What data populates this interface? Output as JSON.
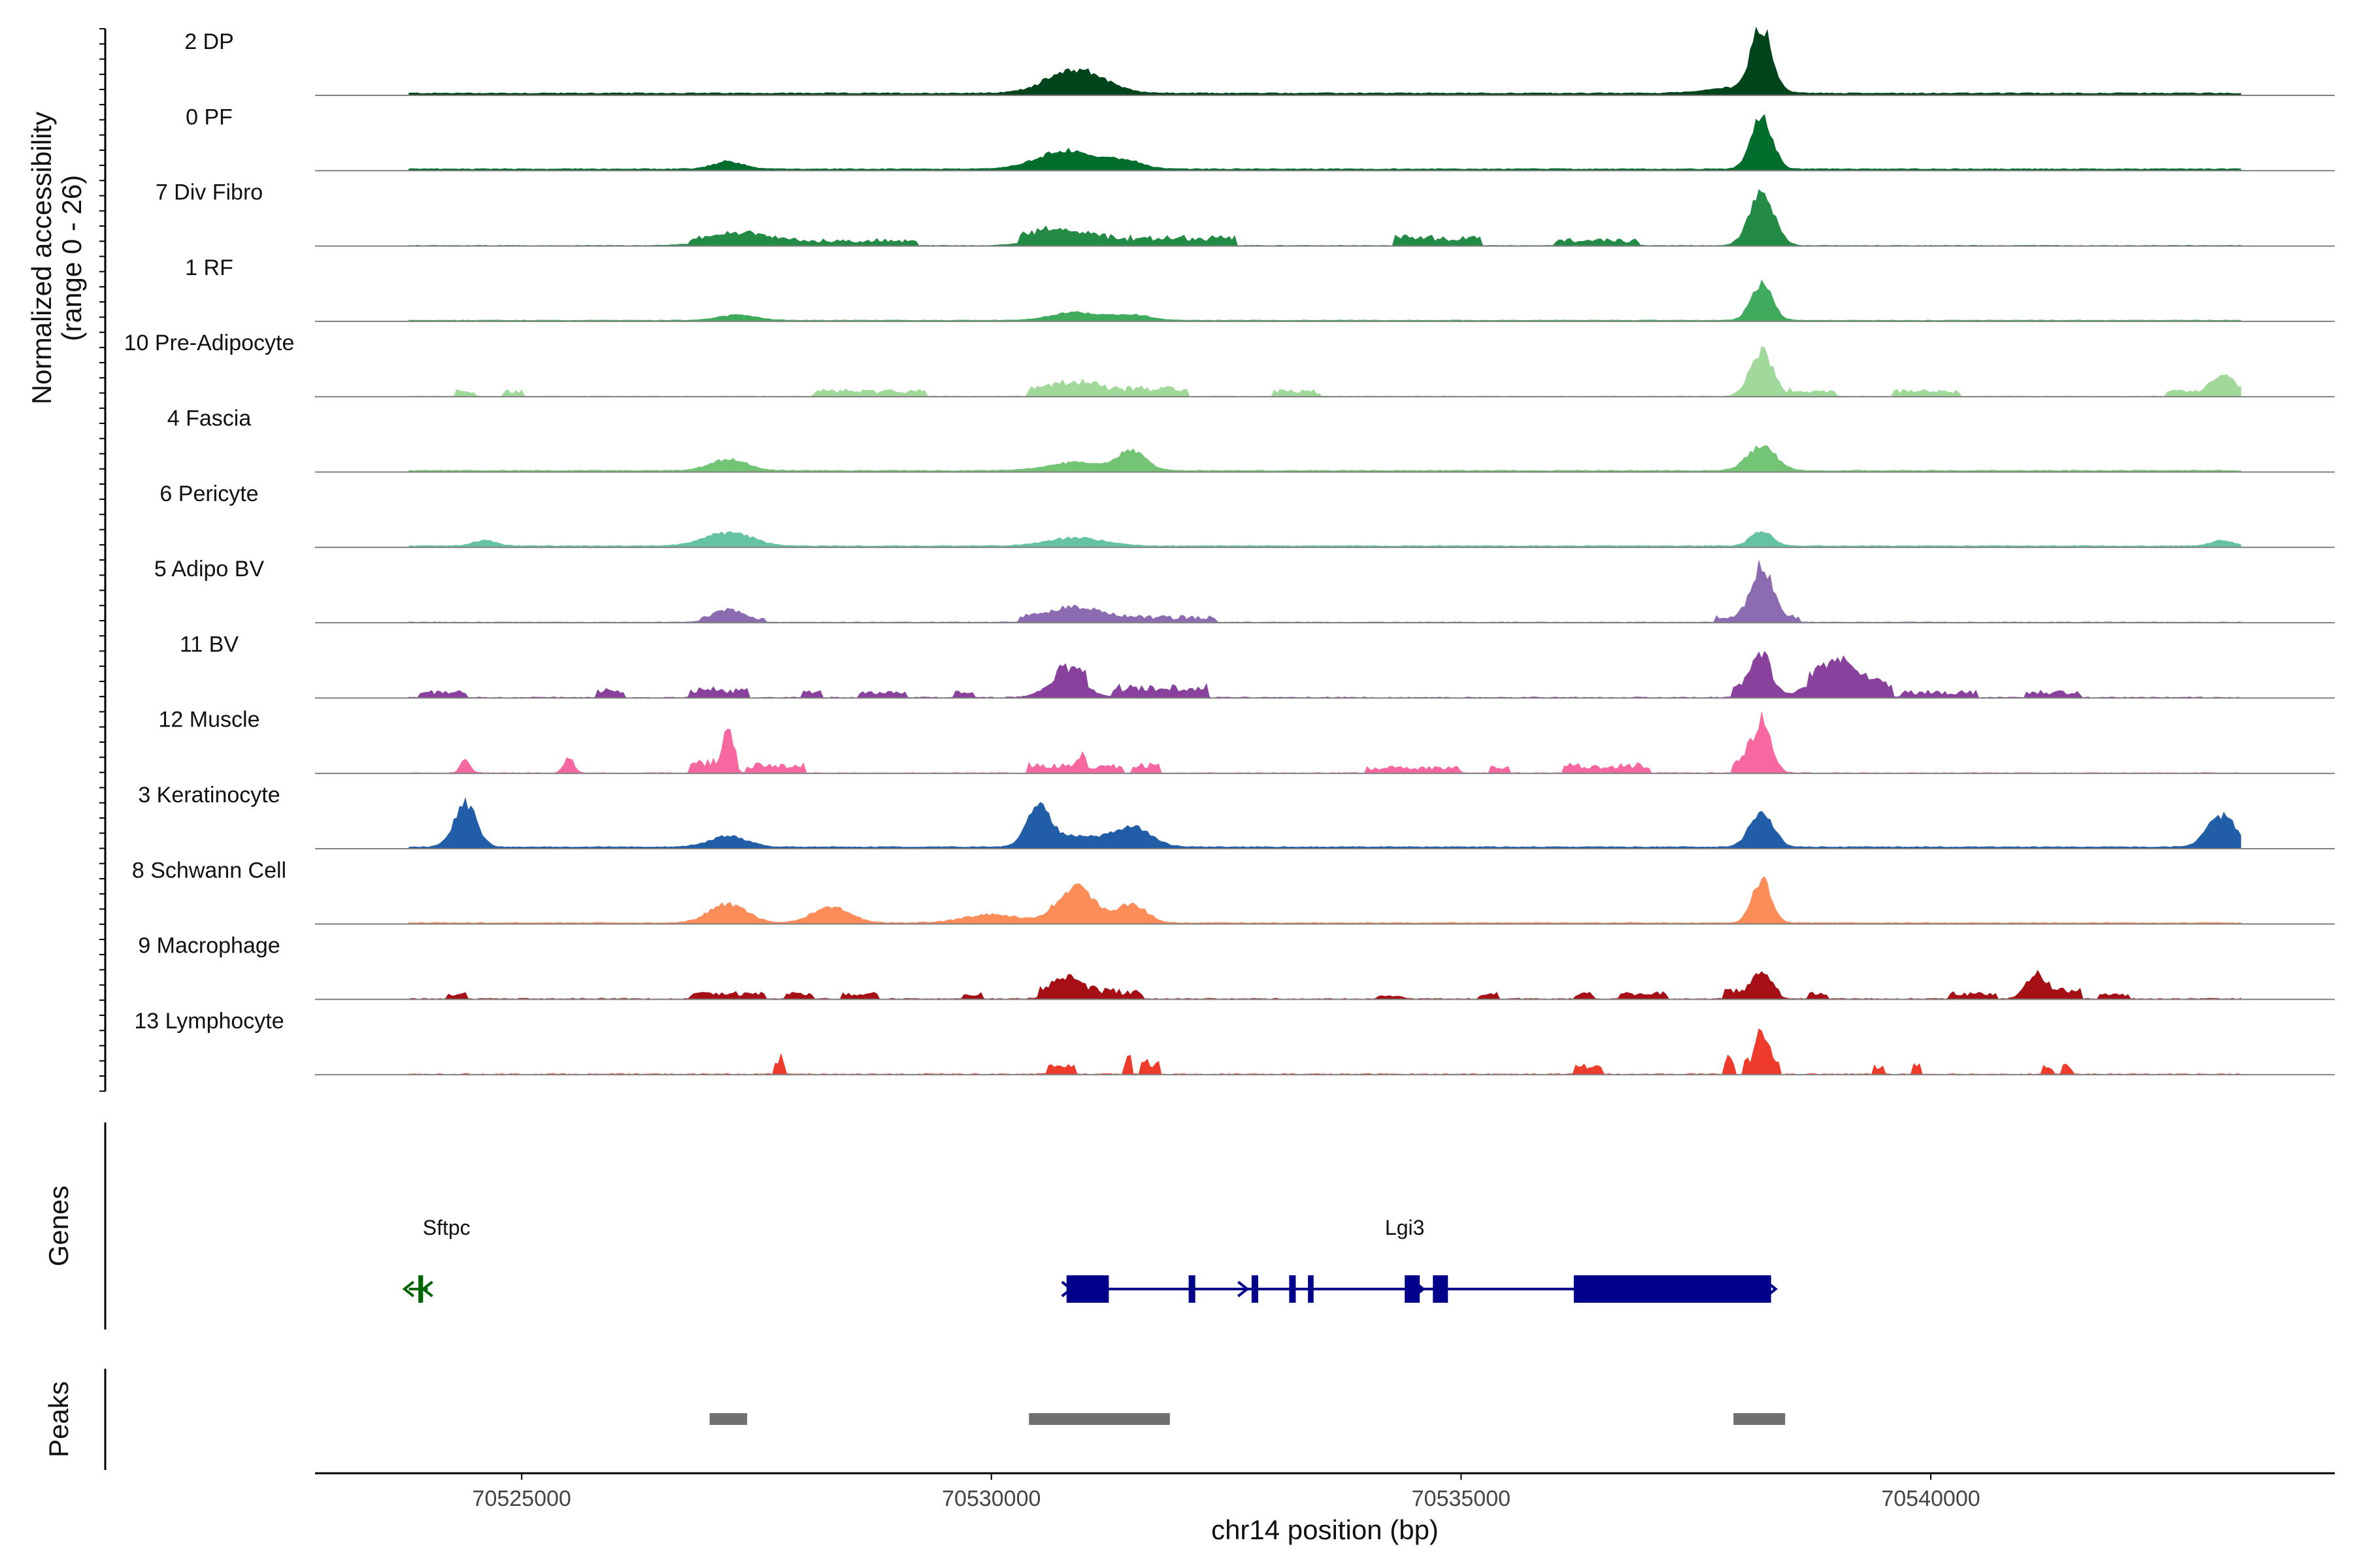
{
  "chart_data": {
    "type": "area",
    "title": "",
    "ylabel_line1": "Normalized accessibility",
    "ylabel_line2": "(range 0 - 26)",
    "ylim": [
      0,
      26
    ],
    "xlabel": "chr14 position (bp)",
    "xlim": [
      70522800,
      70544300
    ],
    "x_ticks": [
      70525000,
      70530000,
      70535000,
      70540000
    ],
    "x_tick_labels": [
      "70525000",
      "70530000",
      "70535000",
      "70540000"
    ],
    "signal_range": [
      70523800,
      70543300
    ],
    "tracks": [
      {
        "name": "2 DP",
        "color": "#00441b",
        "baseline": 0.6,
        "noise": 0.4,
        "peaks": [
          [
            70530900,
            300,
            9
          ],
          [
            70538200,
            110,
            24
          ],
          [
            70537900,
            300,
            2
          ]
        ],
        "blocks": []
      },
      {
        "name": "0 PF",
        "color": "#006d2c",
        "baseline": 0.5,
        "noise": 0.3,
        "peaks": [
          [
            70530800,
            300,
            7
          ],
          [
            70538200,
            110,
            20
          ],
          [
            70527200,
            150,
            3
          ],
          [
            70531400,
            200,
            3
          ]
        ],
        "blocks": []
      },
      {
        "name": "7 Div Fibro",
        "color": "#238b45",
        "baseline": 0.1,
        "noise": 0.2,
        "peaks": [
          [
            70538200,
            130,
            19
          ],
          [
            70530700,
            250,
            4
          ],
          [
            70527300,
            300,
            3
          ]
        ],
        "blocks": [
          [
            70526800,
            70529200,
            2
          ],
          [
            70530300,
            70532600,
            3
          ],
          [
            70534300,
            70535200,
            3
          ],
          [
            70536000,
            70536900,
            2
          ]
        ]
      },
      {
        "name": "1 RF",
        "color": "#41ab5d",
        "baseline": 0.3,
        "noise": 0.2,
        "peaks": [
          [
            70538200,
            110,
            14
          ],
          [
            70530900,
            250,
            3
          ],
          [
            70527300,
            200,
            2
          ],
          [
            70531500,
            200,
            2
          ]
        ],
        "blocks": []
      },
      {
        "name": "10 Pre-Adipocyte",
        "color": "#a1d99b",
        "baseline": 0,
        "noise": 0.3,
        "peaks": [
          [
            70538200,
            120,
            17
          ],
          [
            70543100,
            120,
            6
          ],
          [
            70530900,
            200,
            3
          ]
        ],
        "blocks": [
          [
            70524300,
            70524500,
            2
          ],
          [
            70524800,
            70525000,
            2
          ],
          [
            70528100,
            70529300,
            2
          ],
          [
            70530400,
            70532100,
            3
          ],
          [
            70533000,
            70533500,
            2
          ],
          [
            70538500,
            70539000,
            2
          ],
          [
            70539600,
            70540300,
            2
          ],
          [
            70542500,
            70543300,
            2
          ]
        ]
      },
      {
        "name": "4 Fascia",
        "color": "#74c476",
        "baseline": 0.4,
        "noise": 0.3,
        "peaks": [
          [
            70538200,
            150,
            9
          ],
          [
            70531500,
            150,
            7
          ],
          [
            70527200,
            200,
            4
          ],
          [
            70530900,
            300,
            3
          ]
        ],
        "blocks": []
      },
      {
        "name": "6 Pericyte",
        "color": "#66c2a4",
        "baseline": 0.4,
        "noise": 0.3,
        "peaks": [
          [
            70538200,
            110,
            6
          ],
          [
            70527200,
            250,
            5
          ],
          [
            70530900,
            300,
            3
          ],
          [
            70524600,
            120,
            2
          ],
          [
            70543100,
            120,
            2
          ]
        ],
        "blocks": []
      },
      {
        "name": "5 Adipo BV",
        "color": "#8c6bb1",
        "baseline": 0.1,
        "noise": 0.2,
        "peaks": [
          [
            70538200,
            110,
            19
          ],
          [
            70530900,
            250,
            4
          ],
          [
            70527200,
            150,
            4
          ]
        ],
        "blocks": [
          [
            70526900,
            70527600,
            1
          ],
          [
            70530300,
            70532400,
            2
          ],
          [
            70537700,
            70538600,
            2
          ]
        ]
      },
      {
        "name": "11 BV",
        "color": "#88419d",
        "baseline": 0,
        "noise": 0.4,
        "peaks": [
          [
            70538200,
            110,
            13
          ],
          [
            70539000,
            250,
            10
          ],
          [
            70530800,
            200,
            7
          ]
        ],
        "blocks": [
          [
            70523900,
            70524400,
            2
          ],
          [
            70525800,
            70526100,
            3
          ],
          [
            70526800,
            70527400,
            3
          ],
          [
            70528000,
            70528200,
            2
          ],
          [
            70528600,
            70529100,
            2
          ],
          [
            70529600,
            70529800,
            2
          ],
          [
            70530700,
            70531000,
            5
          ],
          [
            70531300,
            70532300,
            4
          ],
          [
            70537900,
            70538300,
            4
          ],
          [
            70538700,
            70539600,
            4
          ],
          [
            70539700,
            70540500,
            2
          ],
          [
            70541000,
            70541600,
            2
          ]
        ]
      },
      {
        "name": "12 Muscle",
        "color": "#f768a1",
        "baseline": 0,
        "noise": 0.3,
        "peaks": [
          [
            70538200,
            100,
            20
          ],
          [
            70527200,
            50,
            14
          ],
          [
            70525500,
            50,
            6
          ],
          [
            70524400,
            50,
            5
          ]
        ],
        "blocks": [
          [
            70526800,
            70527300,
            4
          ],
          [
            70527400,
            70528000,
            3
          ],
          [
            70530400,
            70531400,
            3
          ],
          [
            70531500,
            70531800,
            3
          ],
          [
            70534000,
            70535000,
            2
          ],
          [
            70535300,
            70535500,
            2
          ],
          [
            70536100,
            70537000,
            3
          ],
          [
            70537900,
            70538100,
            4
          ],
          [
            70530900,
            70531000,
            4
          ]
        ]
      },
      {
        "name": "3 Keratinocyte",
        "color": "#225ea8",
        "baseline": 0.5,
        "noise": 0.3,
        "peaks": [
          [
            70524400,
            120,
            16
          ],
          [
            70530500,
            120,
            14
          ],
          [
            70538200,
            120,
            14
          ],
          [
            70543100,
            150,
            12
          ],
          [
            70531500,
            200,
            7
          ],
          [
            70530900,
            300,
            4
          ],
          [
            70527200,
            200,
            4
          ]
        ],
        "blocks": []
      },
      {
        "name": "8 Schwann Cell",
        "color": "#fc8d59",
        "baseline": 0.3,
        "noise": 0.3,
        "peaks": [
          [
            70538200,
            100,
            16
          ],
          [
            70530900,
            200,
            13
          ],
          [
            70531500,
            150,
            7
          ],
          [
            70527200,
            200,
            7
          ],
          [
            70528300,
            200,
            6
          ],
          [
            70530000,
            300,
            3
          ]
        ],
        "blocks": []
      },
      {
        "name": "9 Macrophage",
        "color": "#a50f15",
        "baseline": 0,
        "noise": 0.4,
        "peaks": [
          [
            70530800,
            150,
            6
          ],
          [
            70538200,
            100,
            7
          ],
          [
            70541100,
            100,
            8
          ]
        ],
        "blocks": [
          [
            70524200,
            70524400,
            2
          ],
          [
            70526800,
            70527600,
            2
          ],
          [
            70527800,
            70528100,
            2
          ],
          [
            70528400,
            70528800,
            2
          ],
          [
            70529700,
            70529900,
            2
          ],
          [
            70530500,
            70531600,
            3
          ],
          [
            70534100,
            70534400,
            1
          ],
          [
            70535200,
            70535400,
            2
          ],
          [
            70536200,
            70536400,
            2
          ],
          [
            70536700,
            70537200,
            2
          ],
          [
            70537800,
            70538400,
            3
          ],
          [
            70538700,
            70538900,
            2
          ],
          [
            70540200,
            70540700,
            2
          ],
          [
            70541100,
            70541600,
            3
          ],
          [
            70541800,
            70542100,
            2
          ]
        ]
      },
      {
        "name": "13 Lymphocyte",
        "color": "#ef3b2c",
        "baseline": 0,
        "noise": 0.4,
        "peaks": [
          [
            70538200,
            60,
            10
          ]
        ],
        "blocks": [
          [
            70527700,
            70527800,
            6
          ],
          [
            70530600,
            70530900,
            3
          ],
          [
            70531400,
            70531500,
            6
          ],
          [
            70531600,
            70531800,
            5
          ],
          [
            70536200,
            70536500,
            3
          ],
          [
            70537800,
            70537900,
            6
          ],
          [
            70538000,
            70538300,
            6
          ],
          [
            70538300,
            70538400,
            4
          ],
          [
            70539400,
            70539500,
            3
          ],
          [
            70539800,
            70539900,
            3
          ],
          [
            70541200,
            70541300,
            3
          ],
          [
            70541400,
            70541500,
            3
          ]
        ]
      }
    ],
    "genes_title": "Genes",
    "genes": [
      {
        "name": "Sftpc",
        "strand": "-",
        "start": 70523800,
        "end": 70524000,
        "color": "#006400",
        "exons": [
          [
            70523900,
            70523950
          ]
        ]
      },
      {
        "name": "Lgi3",
        "strand": "+",
        "start": 70530800,
        "end": 70538300,
        "color": "#00008b",
        "exons": [
          [
            70530800,
            70531250
          ],
          [
            70532100,
            70532170
          ],
          [
            70532770,
            70532840
          ],
          [
            70533170,
            70533240
          ],
          [
            70533370,
            70533430
          ],
          [
            70534400,
            70534560
          ],
          [
            70534700,
            70534860
          ],
          [
            70536200,
            70538300
          ]
        ]
      }
    ],
    "peaks_title": "Peaks",
    "peaks": [
      [
        70527000,
        70527400
      ],
      [
        70530400,
        70531900
      ],
      [
        70537900,
        70538450
      ]
    ],
    "peak_color": "#707070"
  }
}
